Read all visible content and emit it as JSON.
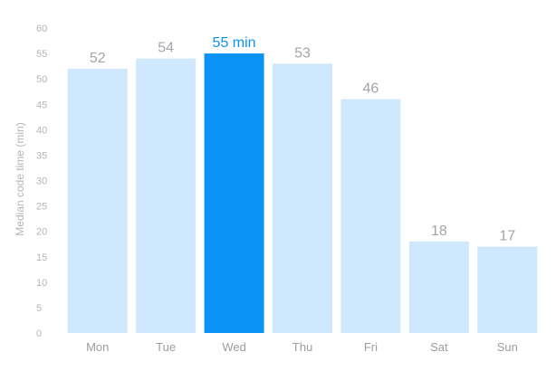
{
  "chart_data": {
    "type": "bar",
    "categories": [
      "Mon",
      "Tue",
      "Wed",
      "Thu",
      "Fri",
      "Sat",
      "Sun"
    ],
    "values": [
      52,
      54,
      55,
      53,
      46,
      18,
      17
    ],
    "value_labels": [
      "52",
      "54",
      "55 min",
      "53",
      "46",
      "18",
      "17"
    ],
    "highlight_index": 2,
    "ylabel": "Median code time (min)",
    "ylim": [
      0,
      60
    ],
    "yticks": [
      "0",
      "5",
      "10",
      "15",
      "20",
      "25",
      "30",
      "35",
      "40",
      "45",
      "50",
      "55",
      "60"
    ],
    "grid": false,
    "colors": {
      "bar": "#cfe8fd",
      "bar_highlight": "#0a93f5",
      "value_label": "#a2a5aa",
      "value_label_highlight": "#0a93f5",
      "tick": "#b2b5ba"
    }
  }
}
